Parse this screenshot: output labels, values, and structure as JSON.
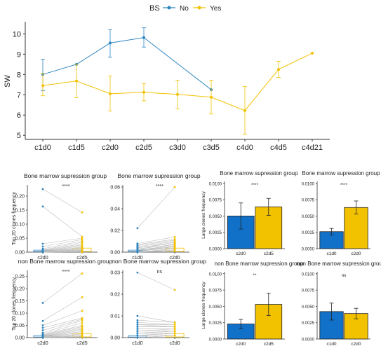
{
  "colors": {
    "no": "#2e86c1",
    "yes": "#f2c200",
    "gray": "#bdbdbd",
    "axis": "#333333"
  },
  "legend": {
    "title": "BS",
    "items": [
      "No",
      "Yes"
    ]
  },
  "chart_data": [
    {
      "type": "line",
      "ylabel": "SW",
      "categories": [
        "c1d0",
        "c1d5",
        "c2d0",
        "c2d5",
        "c3d0",
        "c3d5",
        "c4d0",
        "c4d5",
        "c4d21"
      ],
      "ylim": [
        4.8,
        10.6
      ],
      "yticks": [
        5,
        6,
        7,
        8,
        9,
        10
      ],
      "series": [
        {
          "name": "No",
          "points": [
            {
              "x": "c1d0",
              "y": 8.0,
              "lo": 7.2,
              "hi": 8.75
            },
            {
              "x": "c1d5",
              "y": 8.5,
              "lo": 8.5,
              "hi": 8.5
            },
            {
              "x": "c2d0",
              "y": 9.55,
              "lo": 8.85,
              "hi": 10.2
            },
            {
              "x": "c2d5",
              "y": 9.82,
              "lo": 9.35,
              "hi": 10.3
            },
            {
              "x": "c3d5",
              "y": 7.25,
              "lo": 7.25,
              "hi": 7.25
            }
          ]
        },
        {
          "name": "Yes",
          "points": [
            {
              "x": "c1d0",
              "y": 7.45,
              "lo": 6.95,
              "hi": 8.05
            },
            {
              "x": "c1d5",
              "y": 7.68,
              "lo": 6.85,
              "hi": 8.5
            },
            {
              "x": "c2d0",
              "y": 7.05,
              "lo": 6.2,
              "hi": 7.92
            },
            {
              "x": "c2d5",
              "y": 7.12,
              "lo": 6.7,
              "hi": 7.55
            },
            {
              "x": "c3d0",
              "y": 7.02,
              "lo": 6.3,
              "hi": 7.72
            },
            {
              "x": "c3d5",
              "y": 6.88,
              "lo": 6.05,
              "hi": 7.72
            },
            {
              "x": "c4d0",
              "y": 6.22,
              "lo": 5.05,
              "hi": 7.4
            },
            {
              "x": "c4d5",
              "y": 8.25,
              "lo": 7.85,
              "hi": 8.65
            },
            {
              "x": "c4d21",
              "y": 9.05,
              "lo": 9.05,
              "hi": 9.05
            }
          ]
        }
      ]
    },
    {
      "type": "paired-scatter",
      "title": "Bone marrow supression group",
      "ylabel": "Top 20 clones frequency",
      "categories": [
        "c2d0",
        "c2d5"
      ],
      "ylim": [
        0,
        0.24
      ],
      "yticks": [
        0.0,
        0.05,
        0.1,
        0.15,
        0.2
      ],
      "sig": "****",
      "before": [
        0.225,
        0.163,
        0.03,
        0.02,
        0.012,
        0.008,
        0.006,
        0.004,
        0.003,
        0.002,
        0.002,
        0.001,
        0.001,
        0.001,
        0.0,
        0.0,
        0.0,
        0.0,
        0.0,
        0.0
      ],
      "after": [
        0.142,
        0.055,
        0.05,
        0.045,
        0.04,
        0.035,
        0.03,
        0.026,
        0.022,
        0.018,
        0.015,
        0.012,
        0.01,
        0.008,
        0.006,
        0.005,
        0.004,
        0.003,
        0.002,
        0.001
      ]
    },
    {
      "type": "paired-scatter",
      "title": "Bone marrow supression group",
      "ylabel": "",
      "categories": [
        "c1d0",
        "c2d0"
      ],
      "ylim": [
        0,
        0.062
      ],
      "yticks": [
        0.0,
        0.02,
        0.04,
        0.06
      ],
      "sig": "****",
      "before": [
        0.022,
        0.008,
        0.007,
        0.006,
        0.005,
        0.004,
        0.004,
        0.003,
        0.003,
        0.002,
        0.002,
        0.002,
        0.001,
        0.001,
        0.001,
        0.0,
        0.0,
        0.0,
        0.0,
        0.0
      ],
      "after": [
        0.06,
        0.014,
        0.012,
        0.011,
        0.01,
        0.009,
        0.008,
        0.007,
        0.007,
        0.006,
        0.006,
        0.005,
        0.005,
        0.004,
        0.004,
        0.003,
        0.003,
        0.002,
        0.002,
        0.001
      ]
    },
    {
      "type": "paired-scatter",
      "title": "non Bone marrow supression group",
      "ylabel": "Top 20 clones frequency",
      "categories": [
        "c2d0",
        "c2d5"
      ],
      "ylim": [
        0,
        0.275
      ],
      "yticks": [
        0.0,
        0.05,
        0.1,
        0.15,
        0.2,
        0.25
      ],
      "sig": "****",
      "before": [
        0.142,
        0.068,
        0.05,
        0.04,
        0.03,
        0.02,
        0.015,
        0.012,
        0.01,
        0.008,
        0.006,
        0.005,
        0.004,
        0.003,
        0.002,
        0.002,
        0.001,
        0.001,
        0.0,
        0.0
      ],
      "after": [
        0.262,
        0.165,
        0.11,
        0.08,
        0.075,
        0.07,
        0.06,
        0.05,
        0.045,
        0.04,
        0.035,
        0.03,
        0.025,
        0.02,
        0.015,
        0.01,
        0.008,
        0.005,
        0.003,
        0.002
      ]
    },
    {
      "type": "paired-scatter",
      "title": "non Bone marrow supression group",
      "ylabel": "",
      "categories": [
        "c1d0",
        "c2d0"
      ],
      "ylim": [
        0,
        0.031
      ],
      "yticks": [
        0.0,
        0.01,
        0.02,
        0.03
      ],
      "sig": "ns",
      "before": [
        0.03,
        0.01,
        0.008,
        0.007,
        0.006,
        0.006,
        0.005,
        0.005,
        0.004,
        0.004,
        0.003,
        0.003,
        0.002,
        0.002,
        0.002,
        0.001,
        0.001,
        0.001,
        0.0,
        0.0
      ],
      "after": [
        0.022,
        0.007,
        0.007,
        0.006,
        0.006,
        0.005,
        0.005,
        0.005,
        0.004,
        0.004,
        0.004,
        0.003,
        0.003,
        0.003,
        0.002,
        0.002,
        0.002,
        0.001,
        0.001,
        0.001
      ]
    },
    {
      "type": "bar",
      "title": "Bone marrow supression group",
      "ylabel": "Large clones frequency",
      "categories": [
        "c2d0",
        "c2d5"
      ],
      "values": [
        0.005,
        0.0064
      ],
      "errors": [
        0.002,
        0.0013
      ],
      "ylim": [
        0,
        0.0103
      ],
      "yticks": [
        0.0,
        0.0025,
        0.005,
        0.0075,
        0.01
      ],
      "sig": "****"
    },
    {
      "type": "bar",
      "title": "Bone marrow supression group",
      "ylabel": "",
      "categories": [
        "c1d0",
        "c2d0"
      ],
      "values": [
        0.0026,
        0.0063
      ],
      "errors": [
        0.0005,
        0.001
      ],
      "ylim": [
        0,
        0.0103
      ],
      "yticks": [
        0.0,
        0.0025,
        0.005,
        0.0075,
        0.01
      ],
      "sig": "****"
    },
    {
      "type": "bar",
      "title": "non Bone marrow supression group",
      "ylabel": "Large clones frequency",
      "categories": [
        "c2d0",
        "c2d5"
      ],
      "values": [
        0.0023,
        0.0053
      ],
      "errors": [
        0.0007,
        0.0017
      ],
      "ylim": [
        0,
        0.0103
      ],
      "yticks": [
        0.0,
        0.0025,
        0.005,
        0.0075,
        0.01
      ],
      "sig": "**"
    },
    {
      "type": "bar",
      "title": "non Bone marrow supression group",
      "ylabel": "",
      "categories": [
        "c1d0",
        "c2d0"
      ],
      "values": [
        0.0042,
        0.0039
      ],
      "errors": [
        0.0013,
        0.0008
      ],
      "ylim": [
        0,
        0.0103
      ],
      "yticks": [
        0.0,
        0.0025,
        0.005,
        0.0075,
        0.01
      ],
      "sig": "ns"
    }
  ]
}
